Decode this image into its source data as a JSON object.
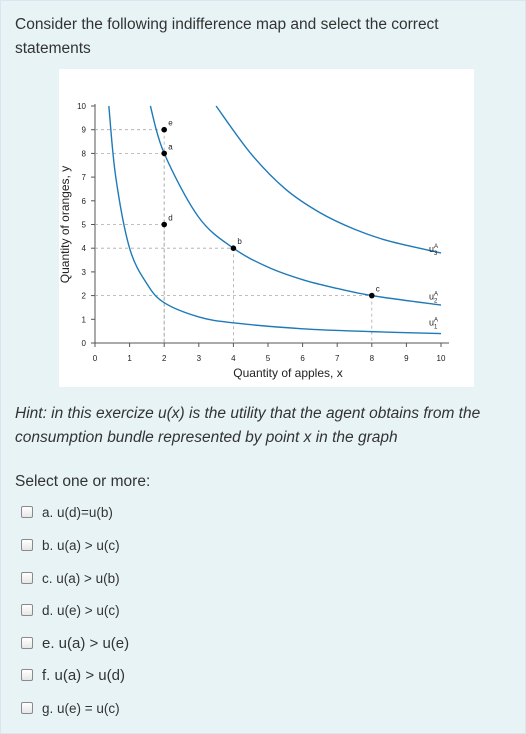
{
  "question": {
    "text": "Consider the following indifference map and select the correct statements"
  },
  "hint": {
    "text": "Hint: in this exercize u(x) is the utility that the agent obtains from the consumption bundle represented by point x in the graph"
  },
  "select_label": "Select one or more:",
  "options": [
    {
      "label": "a. u(d)=u(b)"
    },
    {
      "label": "b. u(a) > u(c)"
    },
    {
      "label": "c. u(a) > u(b)"
    },
    {
      "label": "d. u(e) > u(c)"
    },
    {
      "label": "e. u(a) > u(e)"
    },
    {
      "label": "f. u(a) > u(d)"
    },
    {
      "label": "g. u(e) = u(c)"
    }
  ],
  "chart_data": {
    "type": "line",
    "xlabel": "Quantity of apples, x",
    "ylabel": "Quantity of oranges, y",
    "xlim": [
      0,
      10
    ],
    "ylim": [
      0,
      10
    ],
    "x_ticks": [
      "0",
      "1",
      "2",
      "3",
      "4",
      "5",
      "6",
      "7",
      "8",
      "9",
      "10"
    ],
    "y_ticks": [
      "0",
      "1",
      "2",
      "3",
      "4",
      "5",
      "6",
      "7",
      "8",
      "9",
      "10"
    ],
    "colors": {
      "curve": "#1f7ab8",
      "point": "#000000",
      "guide": "#aaaaaa"
    },
    "series": [
      {
        "name": "u1^A",
        "points": [
          [
            0.4,
            10
          ],
          [
            0.6,
            7
          ],
          [
            1,
            4
          ],
          [
            1.5,
            2.5
          ],
          [
            2,
            1.7
          ],
          [
            3,
            1.1
          ],
          [
            4,
            0.85
          ],
          [
            6,
            0.6
          ],
          [
            8,
            0.48
          ],
          [
            10,
            0.4
          ]
        ]
      },
      {
        "name": "u2^A",
        "points": [
          [
            1.6,
            10
          ],
          [
            2,
            8
          ],
          [
            3,
            5.3
          ],
          [
            4,
            4
          ],
          [
            5,
            3.2
          ],
          [
            6,
            2.67
          ],
          [
            7,
            2.3
          ],
          [
            8,
            2
          ],
          [
            10,
            1.6
          ]
        ]
      },
      {
        "name": "u3^A",
        "points": [
          [
            3.5,
            10
          ],
          [
            4.5,
            8
          ],
          [
            5.5,
            6.5
          ],
          [
            6.5,
            5.5
          ],
          [
            7.5,
            4.8
          ],
          [
            8.5,
            4.3
          ],
          [
            10,
            3.8
          ]
        ]
      }
    ],
    "points": [
      {
        "label": "e",
        "x": 2,
        "y": 9
      },
      {
        "label": "a",
        "x": 2,
        "y": 8
      },
      {
        "label": "d",
        "x": 2,
        "y": 5
      },
      {
        "label": "b",
        "x": 4,
        "y": 4
      },
      {
        "label": "c",
        "x": 8,
        "y": 2
      }
    ],
    "curve_labels": [
      {
        "base": "u",
        "sup": "A",
        "sub": "3",
        "y": 4
      },
      {
        "base": "u",
        "sup": "A",
        "sub": "2",
        "y": 2
      },
      {
        "base": "u",
        "sup": "A",
        "sub": "1",
        "y": 0.9
      }
    ]
  }
}
